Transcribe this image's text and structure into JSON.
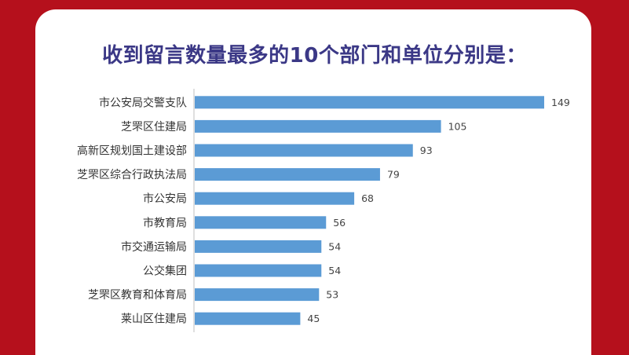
{
  "title": "收到留言数量最多的10个部门和单位分别是：",
  "colors": {
    "background": "#b5101c",
    "card": "#ffffff",
    "title": "#3b3886",
    "bar": "#5b9bd5"
  },
  "chart_data": {
    "type": "bar",
    "orientation": "horizontal",
    "title": "",
    "xlabel": "",
    "ylabel": "",
    "grid": false,
    "legend": "none",
    "xlim": [
      0,
      149
    ],
    "categories": [
      "市公安局交警支队",
      "芝罘区住建局",
      "高新区规划国土建设部",
      "芝罘区综合行政执法局",
      "市公安局",
      "市教育局",
      "市交通运输局",
      "公交集团",
      "芝罘区教育和体育局",
      "莱山区住建局"
    ],
    "values": [
      149,
      105,
      93,
      79,
      68,
      56,
      54,
      54,
      53,
      45
    ]
  }
}
